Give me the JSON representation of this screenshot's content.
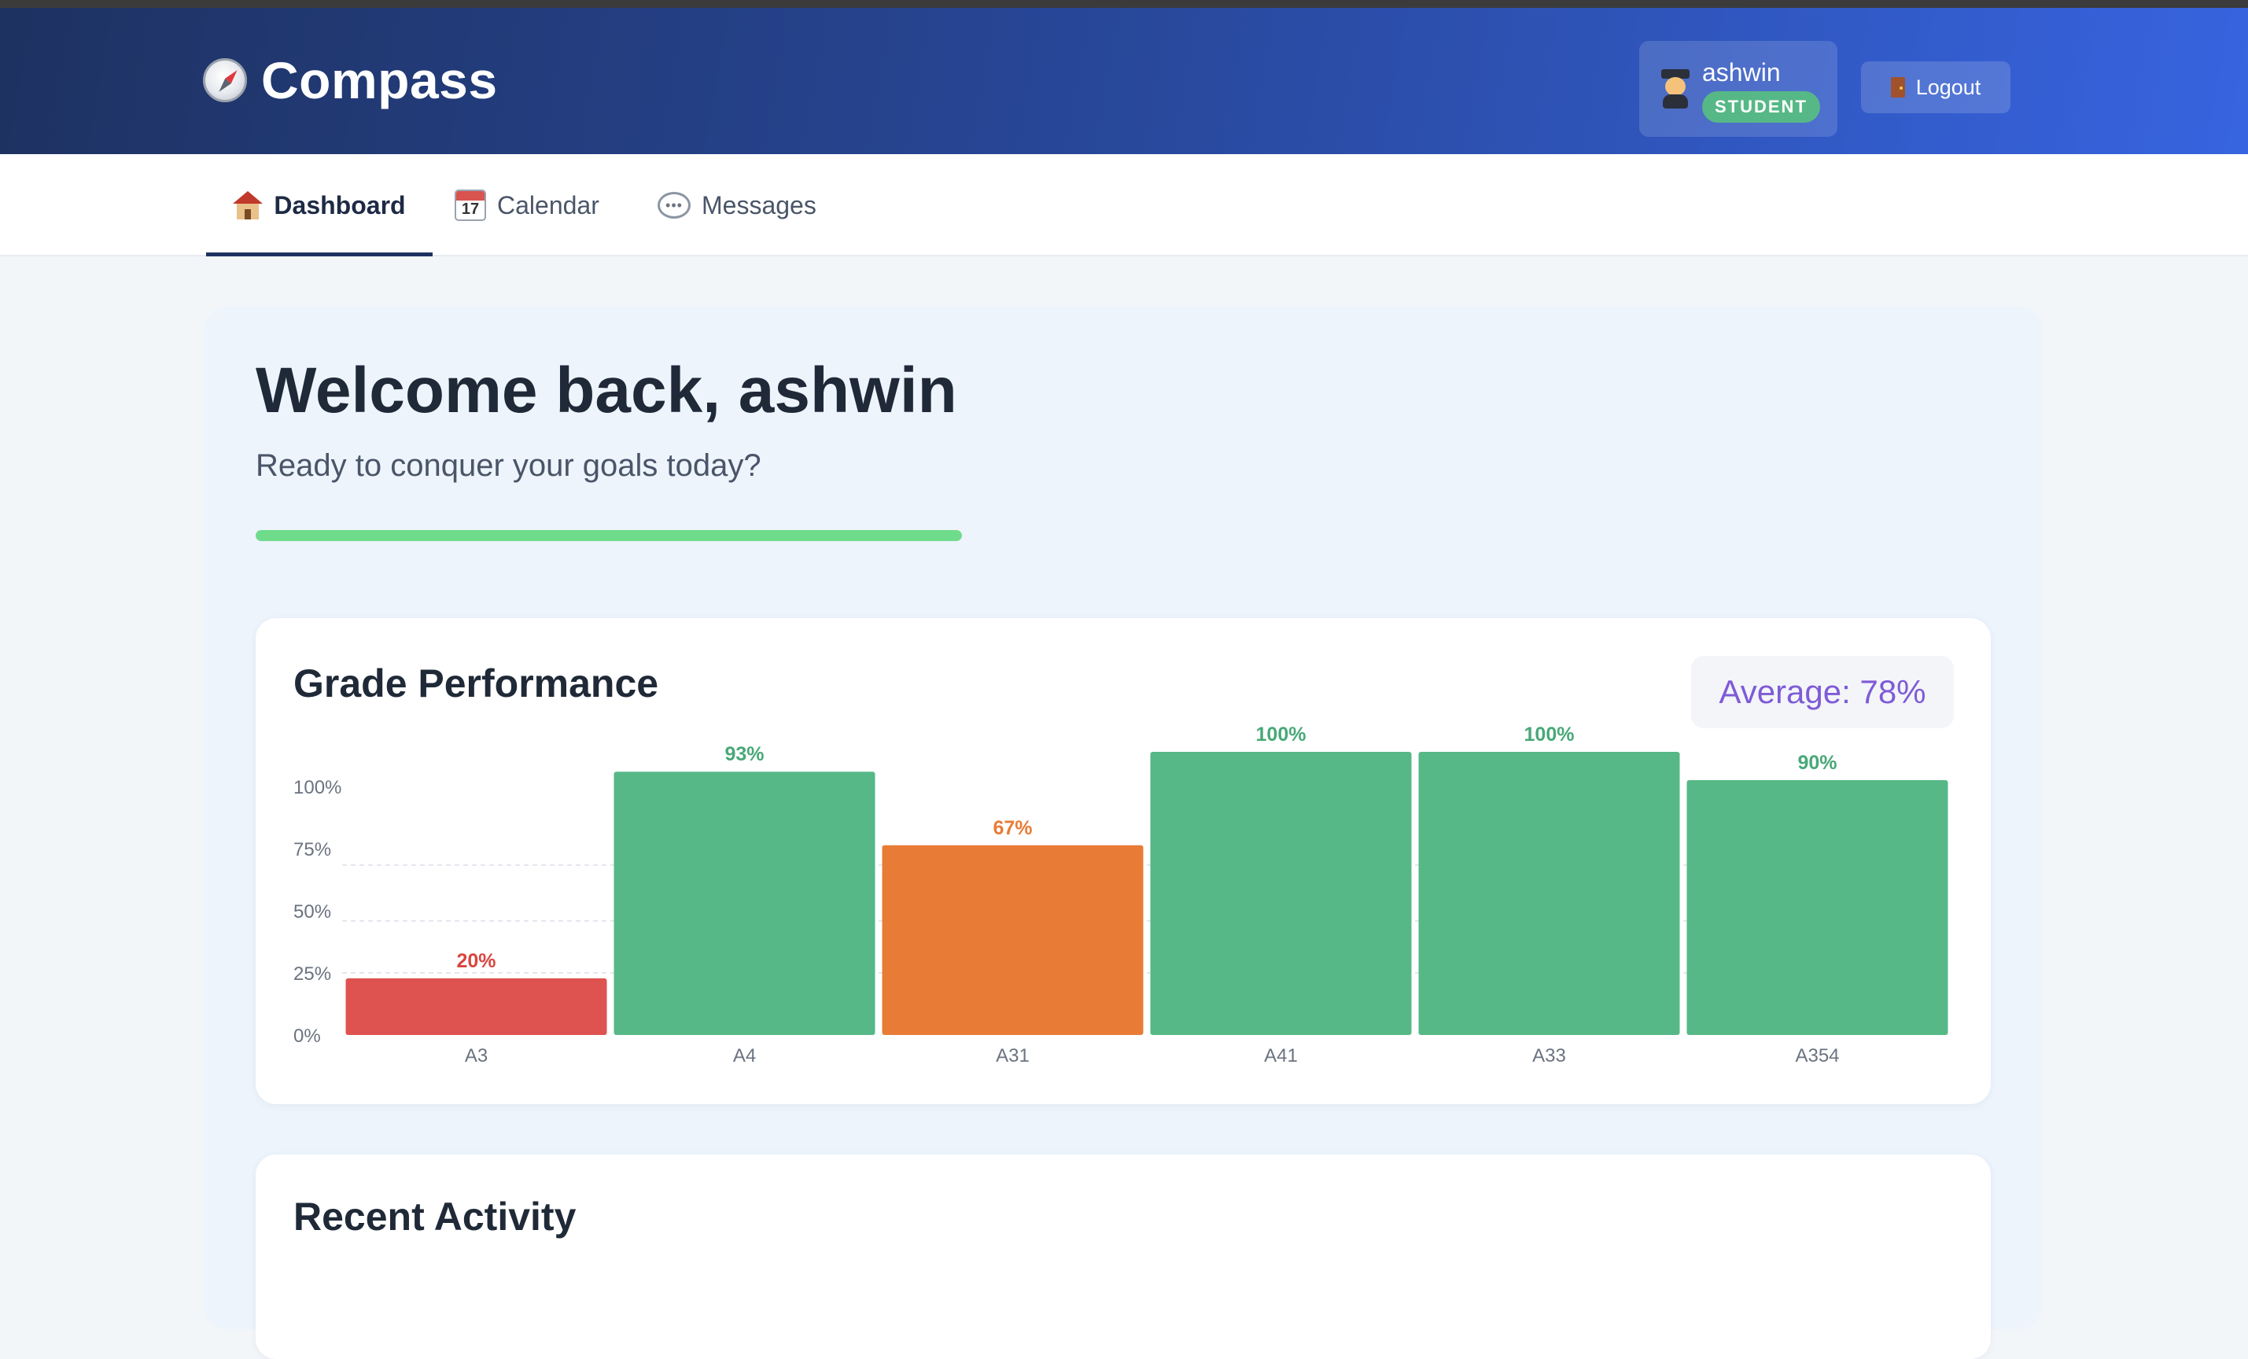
{
  "app": {
    "name": "Compass"
  },
  "user": {
    "name": "ashwin",
    "role": "STUDENT",
    "avatar_icon": "student-icon"
  },
  "header": {
    "logout_label": "Logout",
    "logout_icon": "door-icon"
  },
  "nav": {
    "tabs": [
      {
        "label": "Dashboard",
        "icon": "house-icon",
        "active": true
      },
      {
        "label": "Calendar",
        "icon": "calendar-icon",
        "active": false
      },
      {
        "label": "Messages",
        "icon": "speech-bubble-icon",
        "active": false
      }
    ],
    "calendar_icon_day": "17"
  },
  "welcome": {
    "title": "Welcome back, ashwin",
    "subtitle": "Ready to conquer your goals today?",
    "progress_fraction": 1.0
  },
  "grade_card": {
    "title": "Grade Performance",
    "average_label": "Average: 78%"
  },
  "activity_card": {
    "title": "Recent Activity"
  },
  "colors": {
    "grade_high": "#56b886",
    "grade_mid": "#e87c36",
    "grade_low": "#de5250",
    "label_high": "#48a877",
    "label_mid": "#e87c36",
    "label_low": "#d9453f",
    "accent_purple": "#7e5bd6",
    "progress": "#6fdc8c"
  },
  "chart_data": {
    "type": "bar",
    "categories": [
      "A3",
      "A4",
      "A31",
      "A41",
      "A33",
      "A354"
    ],
    "values": [
      20,
      93,
      67,
      100,
      100,
      90
    ],
    "value_labels": [
      "20%",
      "93%",
      "67%",
      "100%",
      "100%",
      "90%"
    ],
    "y_ticks": [
      "0%",
      "25%",
      "50%",
      "75%",
      "100%"
    ],
    "ylim": [
      0,
      100
    ],
    "grid": true
  }
}
